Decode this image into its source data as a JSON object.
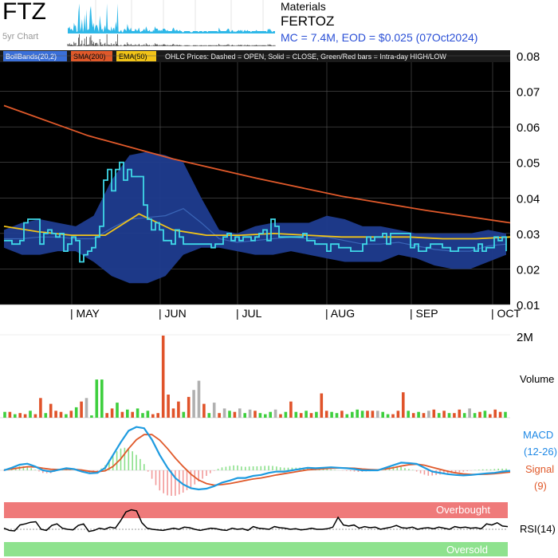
{
  "header": {
    "ticker": "FTZ",
    "subtitle": "5yr Chart",
    "sector": "Materials",
    "company": "FERTOZ",
    "market_info": "MC = 7.4M, EOD = $0.025 (07Oct2024)"
  },
  "legend": {
    "bollinger": "BollBands(20,2)",
    "sma": "SMA(200)",
    "ema": "EMA(50)",
    "note": "OHLC Prices: Dashed = OPEN, Solid = CLOSE, Green/Red bars = Intra-day HIGH/LOW"
  },
  "colors": {
    "background": "#000000",
    "bollinger_fill": "#1f3c8f",
    "sma": "#e0592a",
    "ema": "#f2c418",
    "close": "#3fd8e8",
    "volume_up": "#3ecf3e",
    "volume_down": "#e0532a",
    "volume_flat": "#b0b0b0",
    "macd": "#1e9be0",
    "signal": "#e0592a",
    "overbought": "#ef7a7a",
    "oversold": "#8ee28e"
  },
  "chart_data": [
    {
      "type": "line",
      "name": "price",
      "x_labels": [
        "| MAY",
        "| JUN",
        "| JUL",
        "| AUG",
        "| SEP",
        "| OCT"
      ],
      "ylim": [
        0.01,
        0.08
      ],
      "y_ticks": [
        "0.08",
        "0.07",
        "0.06",
        "0.05",
        "0.04",
        "0.03",
        "0.02",
        "0.01"
      ],
      "series": [
        {
          "name": "close",
          "values": [
            0.028,
            0.028,
            0.027,
            0.027,
            0.028,
            0.033,
            0.034,
            0.034,
            0.034,
            0.027,
            0.03,
            0.031,
            0.03,
            0.029,
            0.03,
            0.025,
            0.027,
            0.029,
            0.028,
            0.022,
            0.024,
            0.025,
            0.026,
            0.029,
            0.032,
            0.045,
            0.048,
            0.042,
            0.048,
            0.05,
            0.045,
            0.048,
            0.046,
            0.046,
            0.046,
            0.038,
            0.034,
            0.031,
            0.033,
            0.031,
            0.028,
            0.028,
            0.027,
            0.031,
            0.029,
            0.027,
            0.027,
            0.027,
            0.027,
            0.027,
            0.027,
            0.027,
            0.026,
            0.027,
            0.027,
            0.029,
            0.03,
            0.028,
            0.029,
            0.028,
            0.029,
            0.029,
            0.028,
            0.029,
            0.03,
            0.031,
            0.028,
            0.034,
            0.032,
            0.029,
            0.029,
            0.029,
            0.029,
            0.029,
            0.029,
            0.03,
            0.028,
            0.028,
            0.027,
            0.027,
            0.027,
            0.025,
            0.027,
            0.027,
            0.026,
            0.026,
            0.026,
            0.025,
            0.025,
            0.025,
            0.027,
            0.029,
            0.028,
            0.029,
            0.029,
            0.03,
            0.027,
            0.03,
            0.03,
            0.03,
            0.03,
            0.03,
            0.026,
            0.027,
            0.025,
            0.025,
            0.026,
            0.027,
            0.027,
            0.027,
            0.026,
            0.026,
            0.025,
            0.025,
            0.026,
            0.026,
            0.026,
            0.026,
            0.025,
            0.027,
            0.025,
            0.026,
            0.026,
            0.029,
            0.028,
            0.029,
            0.025
          ]
        },
        {
          "name": "sma200",
          "values": [
            0.066,
            0.0575,
            0.051,
            0.0455,
            0.0405,
            0.0365,
            0.033
          ]
        },
        {
          "name": "ema50",
          "values": [
            0.032,
            0.0305,
            0.0295,
            0.0295,
            0.0355,
            0.031,
            0.0295,
            0.0295,
            0.03,
            0.0295,
            0.029,
            0.029,
            0.029,
            0.0285,
            0.0285,
            0.029
          ]
        },
        {
          "name": "bb_upper",
          "values": [
            0.031,
            0.033,
            0.034,
            0.033,
            0.032,
            0.035,
            0.045,
            0.052,
            0.053,
            0.052,
            0.05,
            0.04,
            0.031,
            0.03,
            0.032,
            0.033,
            0.033,
            0.033,
            0.035,
            0.034,
            0.032,
            0.032,
            0.031,
            0.03,
            0.03,
            0.03,
            0.03,
            0.031,
            0.03
          ]
        },
        {
          "name": "bb_lower",
          "values": [
            0.026,
            0.024,
            0.024,
            0.025,
            0.025,
            0.022,
            0.018,
            0.016,
            0.016,
            0.018,
            0.024,
            0.026,
            0.026,
            0.025,
            0.024,
            0.024,
            0.025,
            0.024,
            0.023,
            0.022,
            0.022,
            0.022,
            0.024,
            0.023,
            0.021,
            0.02,
            0.02,
            0.022,
            0.024
          ]
        }
      ]
    },
    {
      "type": "bar",
      "name": "volume",
      "ylim": [
        0,
        2000000
      ],
      "y_ticks": [
        "2M"
      ],
      "ylabel": "Volume",
      "values": [
        0.05,
        0.04,
        0.06,
        0.03,
        0.04,
        0.03,
        0.02,
        0.09,
        0.06,
        0.07,
        0.01,
        0.02,
        0.18,
        0.25,
        0.02,
        0.05,
        0.12,
        0.01,
        0.05,
        0.16,
        0.02,
        0.2,
        0.03,
        0.03,
        0.04,
        0.19,
        0.23,
        0.12,
        0.05,
        0.09,
        0.02,
        0.06,
        0.07,
        0.07,
        0.04,
        0.01,
        0.15,
        0.08,
        0.03,
        0.04,
        0.01,
        0.05,
        0.07,
        0.03,
        0.25,
        0.04,
        0.03,
        0.03,
        0.02,
        0.06,
        0.02,
        0.04,
        0.05,
        0.02,
        0.1,
        0.05,
        0.25,
        0.02,
        0.01,
        0.02,
        0.03,
        0.01,
        0.01,
        0.03,
        0.04,
        0.03,
        0.02,
        0.08,
        0.05,
        0.03,
        0.03,
        0.05,
        0.02,
        0.02,
        0.02,
        0.02,
        0.04,
        0.03,
        0.02,
        0.03,
        0.05,
        0.02,
        0.01,
        0.02,
        0.02,
        0.03,
        0.04,
        0.02,
        0.06,
        0.04,
        0.02,
        0.02,
        0.03,
        0.01,
        0.02,
        0.01,
        0.03,
        0.02,
        0.06,
        0.04,
        0.04,
        0.04,
        0.02,
        0.03,
        0.02,
        0.03,
        0.02,
        0.04,
        0.04,
        0.04,
        0.03,
        0.02,
        0.03,
        0.02,
        0.02,
        0.02,
        0.02,
        0.02,
        0.04,
        0.05,
        0.03,
        0.02,
        0.03,
        0.03,
        0.02,
        0.02,
        0.03,
        0.02,
        0.02,
        0.01,
        0.01,
        0.02,
        0.02,
        0.02,
        0.02,
        0.02,
        0.02,
        0.02,
        0.01,
        0.01,
        0.01,
        0.02,
        0.02,
        0.02,
        0.02,
        0.02,
        0.02,
        0.01,
        0.02,
        0.02,
        0.02,
        0.02,
        0.01,
        0.02,
        0.02,
        0.02,
        0.02,
        0.01,
        0.02,
        0.02,
        0.02,
        0.02,
        0.02,
        0.02,
        0.02,
        0.02,
        0.02,
        0.02,
        0.02,
        0.01,
        0.05,
        0.03,
        0.02,
        0.02,
        0.02,
        0.02,
        0.02,
        0.02,
        0.02,
        0.03,
        0.04,
        0.04,
        0.02,
        0.01,
        0.02,
        0.03,
        0.02,
        0.01,
        0.02,
        0.01,
        0.02,
        0.02,
        0.03,
        0.02,
        0.03,
        0.02,
        0.03,
        0.01,
        0.02,
        0.03,
        0.02,
        0.02,
        0.03,
        0.02,
        0.02,
        0.02,
        0.01,
        0.02,
        0.02,
        0.02,
        0.02,
        0.02,
        0.03,
        0.02,
        0.02,
        0.02,
        0.02,
        0.02,
        0.02,
        0.02,
        0.02,
        0.02,
        0.02,
        0.02,
        0.01,
        0.04,
        0.03,
        0.04,
        0.03,
        0.02,
        0.01,
        0.02,
        0.02,
        0.02
      ],
      "volume_bars": [
        {
          "v": 0.05,
          "c": "up"
        },
        {
          "v": 0.05,
          "c": "down"
        },
        {
          "v": 0.03,
          "c": "up"
        },
        {
          "v": 0.04,
          "c": "down"
        },
        {
          "v": 0.03,
          "c": "down"
        },
        {
          "v": 0.06,
          "c": "up"
        },
        {
          "v": 0.03,
          "c": "down"
        },
        {
          "v": 0.17,
          "c": "down"
        },
        {
          "v": 0.04,
          "c": "up"
        },
        {
          "v": 0.12,
          "c": "down"
        },
        {
          "v": 0.06,
          "c": "down"
        },
        {
          "v": 0.05,
          "c": "down"
        },
        {
          "v": 0.03,
          "c": "up"
        },
        {
          "v": 0.06,
          "c": "down"
        },
        {
          "v": 0.09,
          "c": "up"
        },
        {
          "v": 0.14,
          "c": "down"
        },
        {
          "v": 0.17,
          "c": "flat"
        },
        {
          "v": 0.02,
          "c": "up"
        },
        {
          "v": 0.33,
          "c": "up"
        },
        {
          "v": 0.33,
          "c": "up"
        },
        {
          "v": 0.04,
          "c": "down"
        },
        {
          "v": 0.08,
          "c": "down"
        },
        {
          "v": 0.13,
          "c": "up"
        },
        {
          "v": 0.05,
          "c": "down"
        },
        {
          "v": 0.07,
          "c": "up"
        },
        {
          "v": 0.05,
          "c": "down"
        },
        {
          "v": 0.08,
          "c": "up"
        },
        {
          "v": 0.04,
          "c": "up"
        },
        {
          "v": 0.06,
          "c": "up"
        },
        {
          "v": 0.03,
          "c": "down"
        },
        {
          "v": 0.04,
          "c": "down"
        },
        {
          "v": 0.71,
          "c": "down"
        },
        {
          "v": 0.2,
          "c": "down"
        },
        {
          "v": 0.08,
          "c": "down"
        },
        {
          "v": 0.14,
          "c": "down"
        },
        {
          "v": 0.05,
          "c": "up"
        },
        {
          "v": 0.18,
          "c": "down"
        },
        {
          "v": 0.24,
          "c": "flat"
        },
        {
          "v": 0.32,
          "c": "flat"
        },
        {
          "v": 0.12,
          "c": "down"
        },
        {
          "v": 0.04,
          "c": "up"
        },
        {
          "v": 0.13,
          "c": "flat"
        },
        {
          "v": 0.04,
          "c": "down"
        },
        {
          "v": 0.08,
          "c": "flat"
        },
        {
          "v": 0.06,
          "c": "up"
        },
        {
          "v": 0.05,
          "c": "down"
        },
        {
          "v": 0.08,
          "c": "flat"
        },
        {
          "v": 0.04,
          "c": "up"
        },
        {
          "v": 0.07,
          "c": "flat"
        },
        {
          "v": 0.06,
          "c": "down"
        },
        {
          "v": 0.04,
          "c": "up"
        },
        {
          "v": 0.03,
          "c": "up"
        },
        {
          "v": 0.05,
          "c": "up"
        },
        {
          "v": 0.07,
          "c": "flat"
        },
        {
          "v": 0.03,
          "c": "down"
        },
        {
          "v": 0.05,
          "c": "up"
        },
        {
          "v": 0.14,
          "c": "down"
        },
        {
          "v": 0.05,
          "c": "up"
        },
        {
          "v": 0.04,
          "c": "down"
        },
        {
          "v": 0.06,
          "c": "up"
        },
        {
          "v": 0.04,
          "c": "down"
        },
        {
          "v": 0.05,
          "c": "up"
        },
        {
          "v": 0.21,
          "c": "down"
        },
        {
          "v": 0.06,
          "c": "down"
        },
        {
          "v": 0.05,
          "c": "up"
        },
        {
          "v": 0.04,
          "c": "up"
        },
        {
          "v": 0.06,
          "c": "down"
        },
        {
          "v": 0.03,
          "c": "up"
        },
        {
          "v": 0.05,
          "c": "up"
        },
        {
          "v": 0.07,
          "c": "up"
        },
        {
          "v": 0.06,
          "c": "up"
        },
        {
          "v": 0.06,
          "c": "down"
        },
        {
          "v": 0.06,
          "c": "down"
        },
        {
          "v": 0.06,
          "c": "flat"
        },
        {
          "v": 0.05,
          "c": "up"
        },
        {
          "v": 0.03,
          "c": "up"
        },
        {
          "v": 0.03,
          "c": "down"
        },
        {
          "v": 0.06,
          "c": "down"
        },
        {
          "v": 0.22,
          "c": "down"
        },
        {
          "v": 0.06,
          "c": "up"
        },
        {
          "v": 0.04,
          "c": "down"
        },
        {
          "v": 0.05,
          "c": "up"
        },
        {
          "v": 0.04,
          "c": "down"
        },
        {
          "v": 0.06,
          "c": "flat"
        },
        {
          "v": 0.07,
          "c": "down"
        },
        {
          "v": 0.04,
          "c": "up"
        },
        {
          "v": 0.06,
          "c": "down"
        },
        {
          "v": 0.04,
          "c": "up"
        },
        {
          "v": 0.04,
          "c": "down"
        },
        {
          "v": 0.07,
          "c": "down"
        },
        {
          "v": 0.04,
          "c": "up"
        },
        {
          "v": 0.08,
          "c": "flat"
        },
        {
          "v": 0.04,
          "c": "up"
        },
        {
          "v": 0.05,
          "c": "down"
        },
        {
          "v": 0.06,
          "c": "up"
        },
        {
          "v": 0.03,
          "c": "down"
        },
        {
          "v": 0.07,
          "c": "down"
        },
        {
          "v": 0.05,
          "c": "down"
        },
        {
          "v": 0.05,
          "c": "up"
        }
      ]
    },
    {
      "type": "line",
      "name": "macd",
      "series": [
        {
          "name": "MACD (12-26)",
          "values": [
            0.0,
            0.1,
            0.22,
            0.26,
            0.15,
            0.0,
            -0.05,
            0.02,
            0.08,
            0.05,
            -0.05,
            -0.12,
            -0.1,
            0.1,
            0.6,
            1.1,
            1.55,
            1.7,
            1.65,
            1.2,
            0.6,
            0.1,
            -0.3,
            -0.55,
            -0.7,
            -0.75,
            -0.72,
            -0.62,
            -0.48,
            -0.4,
            -0.3,
            -0.3,
            -0.22,
            -0.18,
            -0.1,
            -0.05,
            -0.05,
            0.0,
            0.05,
            0.1,
            0.08,
            0.1,
            0.12,
            0.1,
            0.08,
            0.05,
            0.0,
            0.0,
            0.0,
            0.1,
            0.2,
            0.3,
            0.28,
            0.25,
            0.1,
            -0.05,
            -0.1,
            -0.15,
            -0.18,
            -0.2,
            -0.18,
            -0.15,
            -0.12,
            -0.1,
            -0.05,
            -0.02
          ]
        },
        {
          "name": "Signal (9)",
          "values": [
            0.02,
            0.05,
            0.1,
            0.14,
            0.13,
            0.08,
            0.04,
            0.03,
            0.04,
            0.04,
            0.01,
            -0.04,
            -0.06,
            -0.02,
            0.15,
            0.45,
            0.85,
            1.2,
            1.4,
            1.4,
            1.18,
            0.85,
            0.48,
            0.15,
            -0.15,
            -0.38,
            -0.52,
            -0.58,
            -0.56,
            -0.52,
            -0.46,
            -0.4,
            -0.34,
            -0.3,
            -0.24,
            -0.18,
            -0.13,
            -0.08,
            -0.03,
            0.02,
            0.04,
            0.06,
            0.08,
            0.09,
            0.09,
            0.08,
            0.05,
            0.03,
            0.02,
            0.05,
            0.1,
            0.17,
            0.22,
            0.24,
            0.2,
            0.12,
            0.04,
            -0.04,
            -0.1,
            -0.14,
            -0.16,
            -0.16,
            -0.15,
            -0.13,
            -0.1,
            -0.07
          ]
        }
      ]
    },
    {
      "type": "line",
      "name": "rsi",
      "ylabel": "RSI(14)",
      "values": [
        52,
        48,
        47,
        58,
        60,
        63,
        64,
        50,
        48,
        57,
        60,
        52,
        50,
        49,
        57,
        60,
        46,
        48,
        52,
        50,
        54,
        52,
        66,
        82,
        86,
        84,
        62,
        52,
        50,
        49,
        48,
        50,
        52,
        50,
        54,
        53,
        50,
        48,
        50,
        52,
        51,
        49,
        48,
        52,
        50,
        51,
        48,
        55,
        52,
        51,
        50,
        55,
        53,
        52,
        50,
        51,
        49,
        50,
        52,
        50,
        50,
        51,
        54,
        72,
        58,
        56,
        58,
        52,
        55,
        53,
        54,
        50,
        52,
        54,
        57,
        53,
        52,
        54,
        50,
        52,
        53,
        51,
        54,
        52,
        50,
        55,
        53,
        54,
        52,
        53,
        51,
        60,
        58,
        62,
        56,
        55
      ]
    }
  ],
  "panel_labels": {
    "overbought": "Overbought",
    "oversold": "Oversold",
    "macd": "MACD",
    "macd_params": "(12-26)",
    "signal": "Signal",
    "signal_params": "(9)"
  }
}
